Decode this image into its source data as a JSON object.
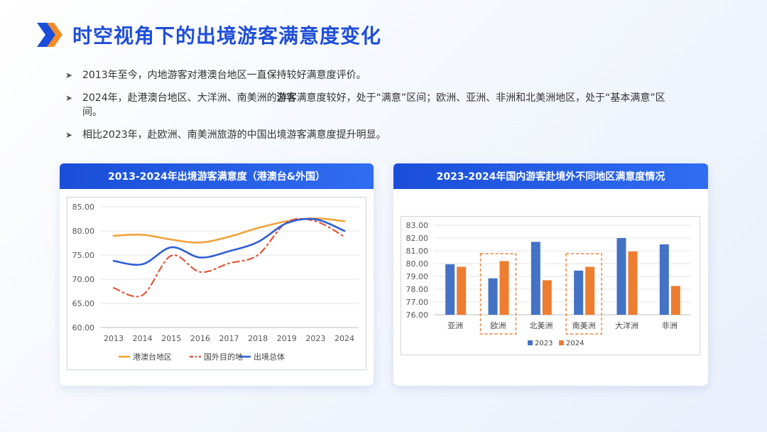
{
  "page": {
    "title": "时空视角下的出境游客满意度变化"
  },
  "bullets": [
    {
      "text": "2013年至今，内地游客对港澳台地区一直保持较好满意度评价。"
    },
    {
      "text": "2024年，赴港澳台地区、大洋洲、南美洲的游客满意度较好，处于“满意”区间；欧洲、亚洲、非洲和北美洲地区，处于“基本满意”区间。"
    },
    {
      "text": "相比2023年，赴欧洲、南美洲旅游的中国出境游客满意度提升明显。"
    }
  ],
  "colors": {
    "accent": "#1f4fd8",
    "orange": "#f2a23a",
    "red": "#e2553a",
    "blue": "#2f5fd6",
    "bar_blue": "#4472c4",
    "bar_orange": "#ed7d31",
    "highlight": "#ed7d31"
  },
  "chart_data": [
    {
      "type": "line",
      "title": "2013-2024年出境游客满意度（港澳台&外国）",
      "x": [
        "2013",
        "2014",
        "2015",
        "2016",
        "2017",
        "2018",
        "2019",
        "2023",
        "2024"
      ],
      "yticks": [
        "60.00",
        "65.00",
        "70.00",
        "75.00",
        "80.00",
        "85.00"
      ],
      "ylim": [
        60,
        85
      ],
      "series": [
        {
          "name": "港澳台地区",
          "color": "#f2a23a",
          "style": "solid",
          "values": [
            79.0,
            79.2,
            78.2,
            77.6,
            78.8,
            80.6,
            82.0,
            82.6,
            82.0
          ]
        },
        {
          "name": "国外目的地",
          "color": "#e2553a",
          "style": "dashdot",
          "values": [
            68.2,
            66.7,
            74.9,
            71.5,
            73.3,
            75.0,
            81.8,
            82.0,
            78.8
          ]
        },
        {
          "name": "出境总体",
          "color": "#2f5fd6",
          "style": "solid",
          "values": [
            73.8,
            73.1,
            76.6,
            74.5,
            75.8,
            77.7,
            81.6,
            82.4,
            80.0
          ]
        }
      ]
    },
    {
      "type": "bar",
      "title": "2023-2024年国内游客赴境外不同地区满意度情况",
      "categories": [
        "亚洲",
        "欧洲",
        "北美洲",
        "南美洲",
        "大洋洲",
        "非洲"
      ],
      "highlight": [
        "欧洲",
        "南美洲"
      ],
      "yticks": [
        "76.00",
        "77.00",
        "78.00",
        "79.00",
        "80.00",
        "81.00",
        "82.00",
        "83.00"
      ],
      "ylim": [
        76,
        83
      ],
      "series": [
        {
          "name": "2023",
          "color": "#4472c4",
          "values": [
            79.95,
            78.85,
            81.7,
            79.45,
            82.0,
            81.5
          ]
        },
        {
          "name": "2024",
          "color": "#ed7d31",
          "values": [
            79.75,
            80.2,
            78.7,
            79.75,
            80.95,
            78.25
          ]
        }
      ]
    }
  ]
}
